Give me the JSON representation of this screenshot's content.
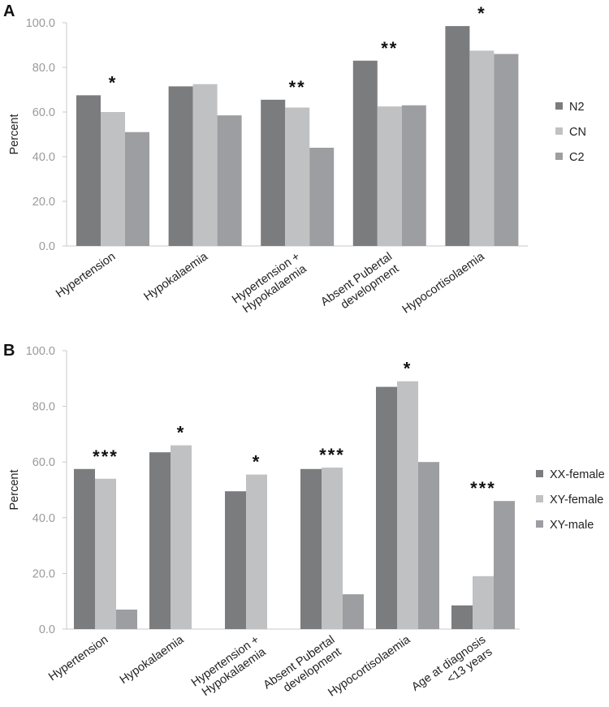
{
  "chart_data": [
    {
      "type": "bar",
      "panel": "A",
      "title": "",
      "xlabel": "",
      "ylabel": "Percent",
      "ylim": [
        0,
        100
      ],
      "yticks": [
        "0.0",
        "20.0",
        "40.0",
        "60.0",
        "80.0",
        "100.0"
      ],
      "categories": [
        [
          "Hypertension"
        ],
        [
          "Hypokalaemia"
        ],
        [
          "Hypertension +",
          "Hypokalaemia"
        ],
        [
          "Absent Pubertal",
          "development"
        ],
        [
          "Hypocortisolaemia"
        ]
      ],
      "series": [
        {
          "name": "N2",
          "color": "#7b7c7e",
          "values": [
            67.5,
            71.5,
            65.5,
            83.0,
            98.5
          ]
        },
        {
          "name": "CN",
          "color": "#c0c1c3",
          "values": [
            60.0,
            72.5,
            62.0,
            62.5,
            87.5
          ]
        },
        {
          "name": "C2",
          "color": "#9d9ea1",
          "values": [
            51.0,
            58.5,
            44.0,
            63.0,
            86.0
          ]
        }
      ],
      "annotations": [
        "*",
        "",
        "**",
        "**",
        "*"
      ],
      "legend_position": "right",
      "grid": false
    },
    {
      "type": "bar",
      "panel": "B",
      "title": "",
      "xlabel": "",
      "ylabel": "Percent",
      "ylim": [
        0,
        100
      ],
      "yticks": [
        "0.0",
        "20.0",
        "40.0",
        "60.0",
        "80.0",
        "100.0"
      ],
      "categories": [
        [
          "Hypertension"
        ],
        [
          "Hypokalaemia"
        ],
        [
          "Hypertension +",
          "Hypokalaemia"
        ],
        [
          "Absent Pubertal",
          "development"
        ],
        [
          "Hypocortisolaemia"
        ],
        [
          "Age at diagnosis",
          "<13 years"
        ]
      ],
      "series": [
        {
          "name": "XX-female",
          "color": "#7b7c7e",
          "values": [
            57.5,
            63.5,
            49.5,
            57.5,
            87.0,
            8.5
          ]
        },
        {
          "name": "XY-female",
          "color": "#c0c1c3",
          "values": [
            54.0,
            66.0,
            55.5,
            58.0,
            89.0,
            19.0
          ]
        },
        {
          "name": "XY-male",
          "color": "#9d9ea1",
          "values": [
            7.0,
            null,
            null,
            12.5,
            60.0,
            46.0
          ]
        }
      ],
      "annotations": [
        "***",
        "*",
        "*",
        "***",
        "*",
        "***"
      ],
      "legend_position": "right",
      "grid": false
    }
  ]
}
